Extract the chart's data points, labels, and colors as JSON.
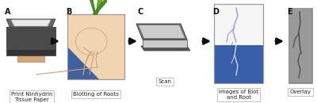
{
  "background_color": "#ffffff",
  "panel_labels": [
    "A",
    "B",
    "C",
    "D",
    "E"
  ],
  "panel_label_fontsize": 7,
  "caption_fontsize": 5.0,
  "captions": [
    "Print Ninhydrin\nTissue Paper",
    "Blotting of Roots",
    "Scan",
    "Images of Blot\nand Root",
    "Overlay"
  ],
  "arrow_color": "#111111",
  "colors": {
    "printer_body": "#4a4a4a",
    "printer_light": "#666666",
    "printer_paper_white": "#e8e8e8",
    "printer_tray": "#D4A574",
    "box_bg_tan": "#F0D5B0",
    "box_bg_blue": "#4060A0",
    "leaf_green1": "#4a9020",
    "leaf_green2": "#6ab030",
    "root_tan": "#C8A080",
    "scanner_dark": "#555555",
    "scanner_mid": "#777777",
    "scanner_light": "#aaaaaa",
    "scanner_glass": "#cccccc",
    "frame_white": "#f5f5f5",
    "frame_blue": "#3a5faa",
    "root_purple": "#9090cc",
    "root_white": "#ddddee",
    "overlay_bg": "#888888",
    "overlay_mid": "#999999",
    "overlay_line": "#404040",
    "border": "#999999",
    "caption_border": "#aaaaaa"
  }
}
